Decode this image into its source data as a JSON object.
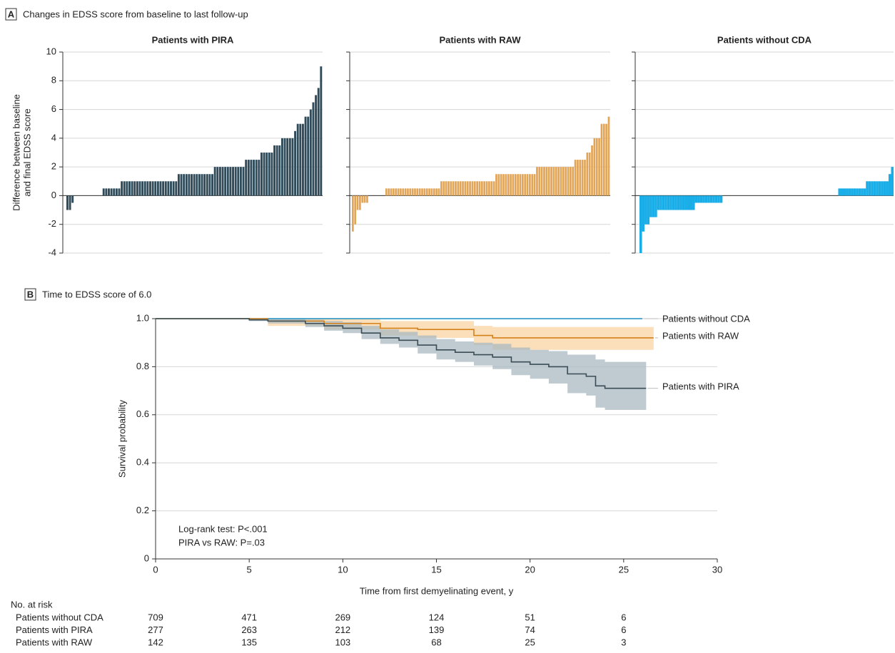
{
  "panels": [
    {
      "label": "A",
      "title": "Changes in EDSS score from baseline to last follow-up"
    },
    {
      "label": "B",
      "title": "Time to EDSS score of 6.0"
    }
  ],
  "chart_data": [
    {
      "type": "bar",
      "title": "Patients with PIRA",
      "ylabel": [
        "Difference between baseline",
        "and final EDSS score"
      ],
      "color": "#2f4b5a",
      "ylim": [
        -4,
        10
      ],
      "yticks": [
        -4,
        -2,
        0,
        2,
        4,
        6,
        8,
        10
      ],
      "grid": true,
      "values": [
        -1,
        -1,
        -0.5,
        0,
        0,
        0,
        0,
        0,
        0,
        0,
        0,
        0,
        0,
        0,
        0.5,
        0.5,
        0.5,
        0.5,
        0.5,
        0.5,
        0.5,
        1,
        1,
        1,
        1,
        1,
        1,
        1,
        1,
        1,
        1,
        1,
        1,
        1,
        1,
        1,
        1,
        1,
        1,
        1,
        1,
        1,
        1,
        1.5,
        1.5,
        1.5,
        1.5,
        1.5,
        1.5,
        1.5,
        1.5,
        1.5,
        1.5,
        1.5,
        1.5,
        1.5,
        1.5,
        2,
        2,
        2,
        2,
        2,
        2,
        2,
        2,
        2,
        2,
        2,
        2,
        2.5,
        2.5,
        2.5,
        2.5,
        2.5,
        2.5,
        3,
        3,
        3,
        3,
        3,
        3.5,
        3.5,
        3.5,
        4,
        4,
        4,
        4,
        4,
        4.5,
        5,
        5,
        5,
        5.5,
        5.5,
        6,
        6.5,
        7,
        7.5,
        9
      ]
    },
    {
      "type": "bar",
      "title": "Patients with RAW",
      "color": "#e2a456",
      "ylim": [
        -4,
        10
      ],
      "yticks": [
        -4,
        -2,
        0,
        2,
        4,
        6,
        8,
        10
      ],
      "grid": true,
      "values": [
        -2.5,
        -2,
        -1,
        -1,
        -0.5,
        -0.5,
        -0.5,
        0,
        0,
        0,
        0,
        0,
        0,
        0,
        0.5,
        0.5,
        0.5,
        0.5,
        0.5,
        0.5,
        0.5,
        0.5,
        0.5,
        0.5,
        0.5,
        0.5,
        0.5,
        0.5,
        0.5,
        0.5,
        0.5,
        0.5,
        0.5,
        0.5,
        0.5,
        0.5,
        0.5,
        1,
        1,
        1,
        1,
        1,
        1,
        1,
        1,
        1,
        1,
        1,
        1,
        1,
        1,
        1,
        1,
        1,
        1,
        1,
        1,
        1,
        1,
        1,
        1.5,
        1.5,
        1.5,
        1.5,
        1.5,
        1.5,
        1.5,
        1.5,
        1.5,
        1.5,
        1.5,
        1.5,
        1.5,
        1.5,
        1.5,
        1.5,
        1.5,
        2,
        2,
        2,
        2,
        2,
        2,
        2,
        2,
        2,
        2,
        2,
        2,
        2,
        2,
        2,
        2,
        2.5,
        2.5,
        2.5,
        2.5,
        2.5,
        3,
        3,
        3.5,
        4,
        4,
        4,
        5,
        5,
        5,
        5.5
      ]
    },
    {
      "type": "bar",
      "title": "Patients without CDA",
      "color": "#1aaee8",
      "ylim": [
        -4,
        10
      ],
      "yticks": [
        -4,
        -2,
        0,
        2,
        4,
        6,
        8,
        10
      ],
      "grid": true,
      "values": [
        -4,
        -2.5,
        -2,
        -2,
        -1.5,
        -1.5,
        -1.5,
        -1,
        -1,
        -1,
        -1,
        -1,
        -1,
        -1,
        -1,
        -1,
        -1,
        -1,
        -1,
        -1,
        -1,
        -1,
        -0.5,
        -0.5,
        -0.5,
        -0.5,
        -0.5,
        -0.5,
        -0.5,
        -0.5,
        -0.5,
        -0.5,
        -0.5,
        0,
        0,
        0,
        0,
        0,
        0,
        0,
        0,
        0,
        0,
        0,
        0,
        0,
        0,
        0,
        0,
        0,
        0,
        0,
        0,
        0,
        0,
        0,
        0,
        0,
        0,
        0,
        0,
        0,
        0,
        0,
        0,
        0,
        0,
        0,
        0,
        0,
        0,
        0,
        0,
        0,
        0,
        0,
        0,
        0,
        0,
        0.5,
        0.5,
        0.5,
        0.5,
        0.5,
        0.5,
        0.5,
        0.5,
        0.5,
        0.5,
        0.5,
        1,
        1,
        1,
        1,
        1,
        1,
        1,
        1,
        1,
        1.5,
        2
      ]
    },
    {
      "type": "line",
      "step": true,
      "xlabel": "Time from first demyelinating event, y",
      "ylabel": "Survival probability",
      "xlim": [
        0,
        30
      ],
      "xticks": [
        0,
        5,
        10,
        15,
        20,
        25,
        30
      ],
      "ylim": [
        0,
        1
      ],
      "yticks": [
        0,
        0.2,
        0.4,
        0.6,
        0.8,
        {
          "value": 1,
          "label": "1.0"
        }
      ],
      "grid": true,
      "annotations": [
        "Log-rank test: P<.001",
        "PIRA vs RAW: P=.03"
      ],
      "series": [
        {
          "name": "Patients without CDA",
          "color": "#1b8fc4",
          "x": [
            0,
            26
          ],
          "values": [
            1,
            1
          ]
        },
        {
          "name": "Patients with RAW",
          "color": "#d4811a",
          "band_color": "#fad3a3",
          "x": [
            0,
            6,
            9,
            12,
            14,
            17,
            18,
            26.6
          ],
          "values": [
            1,
            0.99,
            0.98,
            0.96,
            0.955,
            0.93,
            0.92,
            0.92
          ],
          "lower": [
            1,
            0.97,
            0.955,
            0.93,
            0.92,
            0.89,
            0.87,
            0.87
          ],
          "upper": [
            1,
            1,
            1,
            0.99,
            0.99,
            0.97,
            0.965,
            0.965
          ]
        },
        {
          "name": "Patients with PIRA",
          "color": "#3b4c55",
          "band_color": "#a9bac2",
          "x": [
            0,
            5,
            6,
            8,
            9,
            10,
            11,
            12,
            13,
            14,
            15,
            16,
            17,
            18,
            19,
            20,
            21,
            22,
            23,
            23.5,
            24,
            26.2
          ],
          "values": [
            1,
            0.995,
            0.99,
            0.98,
            0.97,
            0.96,
            0.94,
            0.92,
            0.91,
            0.89,
            0.87,
            0.86,
            0.85,
            0.84,
            0.82,
            0.81,
            0.8,
            0.77,
            0.76,
            0.72,
            0.71,
            0.71
          ],
          "lower": [
            1,
            0.99,
            0.98,
            0.965,
            0.95,
            0.94,
            0.915,
            0.895,
            0.88,
            0.855,
            0.83,
            0.82,
            0.805,
            0.79,
            0.765,
            0.75,
            0.73,
            0.69,
            0.68,
            0.63,
            0.62,
            0.62
          ],
          "upper": [
            1,
            1,
            1,
            0.995,
            0.99,
            0.985,
            0.97,
            0.955,
            0.945,
            0.93,
            0.915,
            0.905,
            0.9,
            0.895,
            0.88,
            0.87,
            0.865,
            0.85,
            0.85,
            0.83,
            0.82,
            0.82
          ]
        }
      ],
      "risk_table": {
        "title": "No. at risk",
        "rows": [
          {
            "name": "Patients without CDA",
            "values": [
              709,
              471,
              269,
              124,
              51,
              6
            ]
          },
          {
            "name": "Patients with PIRA",
            "values": [
              277,
              263,
              212,
              139,
              74,
              6
            ]
          },
          {
            "name": "Patients with RAW",
            "values": [
              142,
              135,
              103,
              68,
              25,
              3
            ]
          }
        ]
      }
    }
  ]
}
